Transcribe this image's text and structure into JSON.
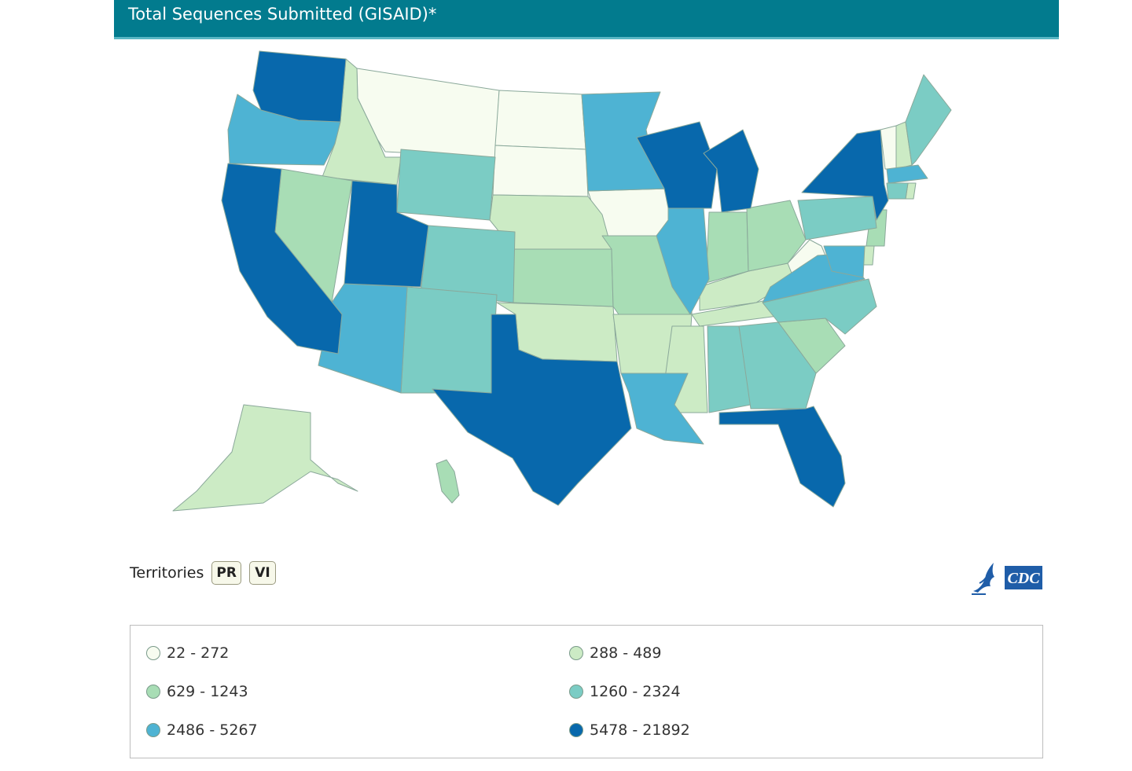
{
  "header": {
    "title": "Total Sequences Submitted (GISAID)*"
  },
  "territories": {
    "label": "Territories",
    "buttons": [
      "PR",
      "VI"
    ]
  },
  "logo": {
    "text": "CDC"
  },
  "legend": {
    "items": [
      {
        "label": "22 - 272",
        "color": "#f7fcf0"
      },
      {
        "label": "288 - 489",
        "color": "#ccebc5"
      },
      {
        "label": "629 - 1243",
        "color": "#a8ddb5"
      },
      {
        "label": "1260 - 2324",
        "color": "#7bccc4"
      },
      {
        "label": "2486 - 5267",
        "color": "#4eb3d3"
      },
      {
        "label": "5478 - 21892",
        "color": "#0868ac"
      }
    ]
  },
  "map": {
    "region": "United States",
    "states_by_bin": {
      "0": [
        "MT",
        "ND",
        "SD",
        "IA",
        "WV",
        "VT"
      ],
      "1": [
        "ID",
        "NE",
        "OK",
        "AR",
        "KY",
        "TN",
        "MS",
        "AK",
        "NH",
        "DE",
        "RI"
      ],
      "2": [
        "NV",
        "KS",
        "MO",
        "IN",
        "OH",
        "SC",
        "NJ",
        "HI"
      ],
      "3": [
        "WY",
        "CO",
        "NM",
        "AL",
        "GA",
        "NC",
        "PA",
        "ME",
        "CT"
      ],
      "4": [
        "OR",
        "AZ",
        "MN",
        "IL",
        "LA",
        "VA",
        "MD",
        "MA"
      ],
      "5": [
        "WA",
        "CA",
        "UT",
        "TX",
        "WI",
        "MI",
        "NY",
        "FL"
      ]
    }
  }
}
